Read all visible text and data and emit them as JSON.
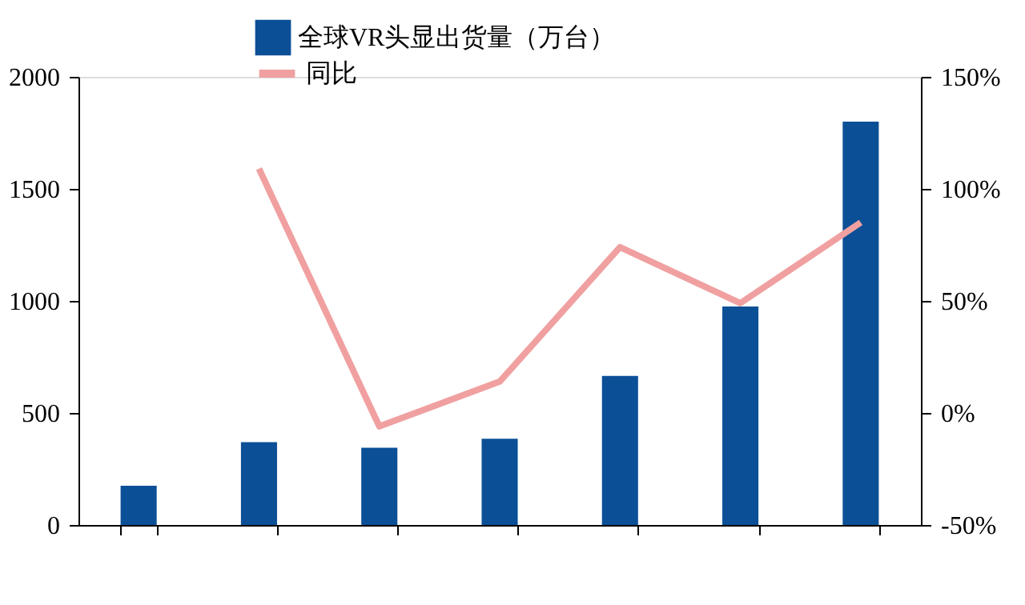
{
  "chart_data": {
    "type": "bar",
    "categories": [
      null,
      null,
      null,
      null,
      null,
      null,
      null
    ],
    "series": [
      {
        "name": "全球VR头显出货量（万台）",
        "color": "#0b4f96",
        "values": [
          175,
          370,
          345,
          385,
          665,
          975,
          1800
        ]
      },
      {
        "name": "同比",
        "type": "line",
        "axis": "y2",
        "color": "#f0a0a0",
        "values": [
          null,
          109,
          -6,
          14,
          74,
          49,
          85
        ]
      }
    ],
    "ylim": [
      0,
      2000
    ],
    "yticks": [
      0,
      500,
      1000,
      1500,
      2000
    ],
    "y2lim": [
      -50,
      150
    ],
    "y2ticks": [
      {
        "value": -50,
        "label": "-50%"
      },
      {
        "value": 0,
        "label": "0%"
      },
      {
        "value": 50,
        "label": "50%"
      },
      {
        "value": 100,
        "label": "100%"
      },
      {
        "value": 150,
        "label": "150%"
      }
    ],
    "grid": false,
    "legend": "top",
    "line_style": "solid",
    "marker": "none"
  }
}
